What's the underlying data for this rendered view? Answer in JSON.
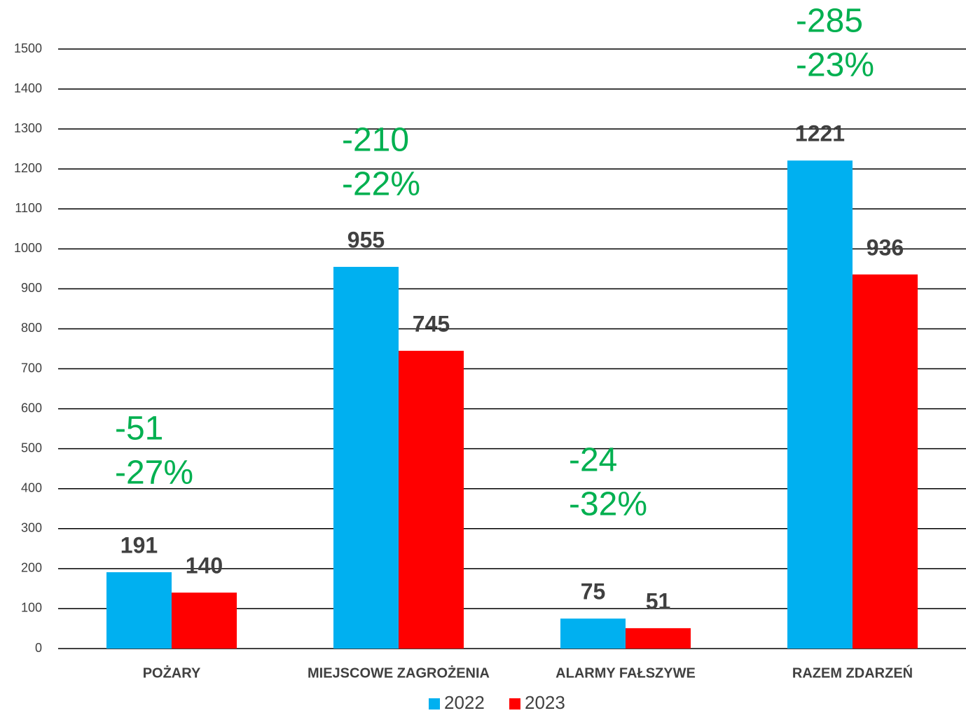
{
  "chart_data": {
    "type": "bar",
    "categories": [
      "POŻARY",
      "MIEJSCOWE ZAGROŻENIA",
      "ALARMY FAŁSZYWE",
      "RAZEM ZDARZEŃ"
    ],
    "series": [
      {
        "name": "2022",
        "color": "#00b0f0",
        "values": [
          191,
          955,
          75,
          1221
        ]
      },
      {
        "name": "2023",
        "color": "#ff0000",
        "values": [
          140,
          745,
          51,
          936
        ]
      }
    ],
    "annotations": [
      [
        "-51",
        "-27%"
      ],
      [
        "-210",
        "-22%"
      ],
      [
        "-24",
        "-32%"
      ],
      [
        "-285",
        "-23%"
      ]
    ],
    "ylim": [
      0,
      1500
    ],
    "yticks": [
      0,
      100,
      200,
      300,
      400,
      500,
      600,
      700,
      800,
      900,
      1000,
      1100,
      1200,
      1300,
      1400,
      1500
    ],
    "grid": true
  }
}
